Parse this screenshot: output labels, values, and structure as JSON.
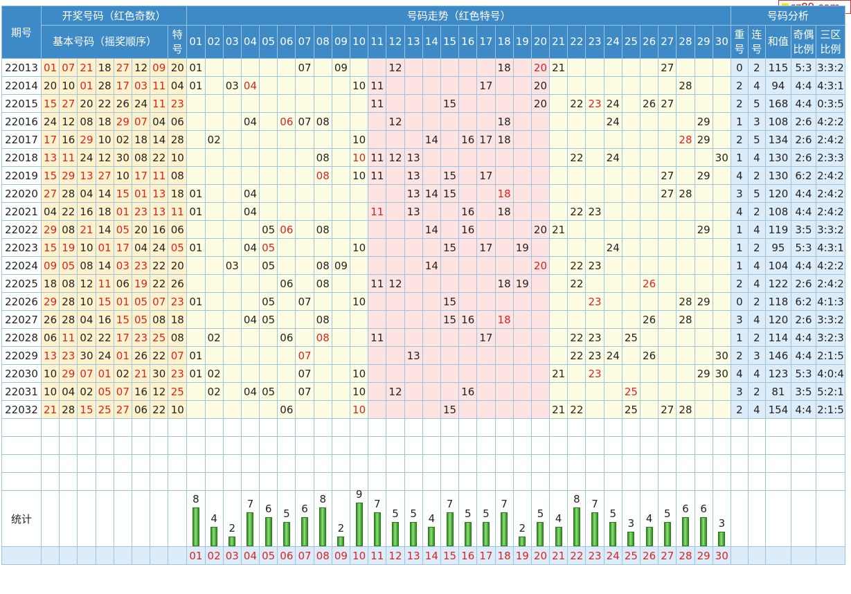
{
  "header": {
    "period": "期号",
    "draw_numbers": "开奖号码（红色奇数）",
    "basic_numbers": "基本号码（摇奖顺序）",
    "special": "特号",
    "trend": "号码走势（红色特号）",
    "analysis": "号码分析",
    "repeat": "重号",
    "consecutive": "连号",
    "sum": "和值",
    "odd_even": "奇偶比例",
    "zone": "三区比例"
  },
  "brand": "cz89.com",
  "stats_label": "统计",
  "colors": {
    "header_bg": "#3d8ac6",
    "odd_red": "#dd2222",
    "bar_green": "#2c8a1c",
    "number_bg": "#fdf2cc",
    "zone2_bg": "#fde3e1",
    "zone_bg": "#fdfde4",
    "analysis_bg": "#ddecf9"
  },
  "trend_labels": [
    "01",
    "02",
    "03",
    "04",
    "05",
    "06",
    "07",
    "08",
    "09",
    "10",
    "11",
    "12",
    "13",
    "14",
    "15",
    "16",
    "17",
    "18",
    "19",
    "20",
    "21",
    "22",
    "23",
    "24",
    "25",
    "26",
    "27",
    "28",
    "29",
    "30"
  ],
  "rows": [
    {
      "period": "22013",
      "basic": [
        "01",
        "07",
        "21",
        "18",
        "27",
        "12",
        "09"
      ],
      "special": "20",
      "trend": [
        "01",
        "07",
        "09",
        "12",
        "18",
        "20",
        "21",
        "27"
      ],
      "repeat": "0",
      "consecutive": "2",
      "sum": "115",
      "odd_even": "5:3",
      "zone": "3:3:2"
    },
    {
      "period": "22014",
      "basic": [
        "20",
        "10",
        "01",
        "28",
        "17",
        "03",
        "11"
      ],
      "special": "04",
      "trend": [
        "01",
        "03",
        "04",
        "10",
        "11",
        "17",
        "20",
        "28"
      ],
      "repeat": "2",
      "consecutive": "4",
      "sum": "94",
      "odd_even": "4:4",
      "zone": "4:3:1"
    },
    {
      "period": "22015",
      "basic": [
        "15",
        "27",
        "20",
        "22",
        "26",
        "24",
        "11"
      ],
      "special": "23",
      "trend": [
        "11",
        "15",
        "20",
        "22",
        "23",
        "24",
        "26",
        "27"
      ],
      "repeat": "2",
      "consecutive": "5",
      "sum": "168",
      "odd_even": "4:4",
      "zone": "0:3:5"
    },
    {
      "period": "22016",
      "basic": [
        "24",
        "12",
        "08",
        "18",
        "29",
        "07",
        "04"
      ],
      "special": "06",
      "trend": [
        "04",
        "06",
        "07",
        "08",
        "12",
        "18",
        "24",
        "29"
      ],
      "repeat": "1",
      "consecutive": "3",
      "sum": "108",
      "odd_even": "2:6",
      "zone": "4:2:2"
    },
    {
      "period": "22017",
      "basic": [
        "17",
        "16",
        "29",
        "10",
        "02",
        "18",
        "14"
      ],
      "special": "28",
      "trend": [
        "02",
        "10",
        "14",
        "16",
        "17",
        "18",
        "28",
        "29"
      ],
      "repeat": "2",
      "consecutive": "5",
      "sum": "134",
      "odd_even": "2:6",
      "zone": "2:4:2"
    },
    {
      "period": "22018",
      "basic": [
        "13",
        "11",
        "24",
        "12",
        "30",
        "08",
        "22"
      ],
      "special": "10",
      "trend": [
        "08",
        "10",
        "11",
        "12",
        "13",
        "22",
        "24",
        "30"
      ],
      "repeat": "1",
      "consecutive": "4",
      "sum": "130",
      "odd_even": "2:6",
      "zone": "2:3:3"
    },
    {
      "period": "22019",
      "basic": [
        "15",
        "29",
        "13",
        "27",
        "10",
        "17",
        "11"
      ],
      "special": "08",
      "trend": [
        "08",
        "10",
        "11",
        "13",
        "15",
        "17",
        "27",
        "29"
      ],
      "repeat": "4",
      "consecutive": "2",
      "sum": "130",
      "odd_even": "6:2",
      "zone": "2:4:2"
    },
    {
      "period": "22020",
      "basic": [
        "27",
        "28",
        "04",
        "14",
        "15",
        "01",
        "13"
      ],
      "special": "18",
      "trend": [
        "01",
        "04",
        "13",
        "14",
        "15",
        "18",
        "27",
        "28"
      ],
      "repeat": "3",
      "consecutive": "5",
      "sum": "120",
      "odd_even": "4:4",
      "zone": "2:4:2"
    },
    {
      "period": "22021",
      "basic": [
        "04",
        "22",
        "16",
        "18",
        "01",
        "23",
        "13"
      ],
      "special": "11",
      "trend": [
        "01",
        "04",
        "11",
        "13",
        "16",
        "18",
        "22",
        "23"
      ],
      "repeat": "4",
      "consecutive": "2",
      "sum": "108",
      "odd_even": "4:4",
      "zone": "2:4:2"
    },
    {
      "period": "22022",
      "basic": [
        "29",
        "08",
        "21",
        "14",
        "05",
        "20",
        "16"
      ],
      "special": "06",
      "trend": [
        "05",
        "06",
        "08",
        "14",
        "16",
        "20",
        "21",
        "29"
      ],
      "repeat": "1",
      "consecutive": "4",
      "sum": "119",
      "odd_even": "3:5",
      "zone": "3:3:2"
    },
    {
      "period": "22023",
      "basic": [
        "15",
        "19",
        "10",
        "01",
        "17",
        "04",
        "24"
      ],
      "special": "05",
      "trend": [
        "01",
        "04",
        "05",
        "10",
        "15",
        "17",
        "19",
        "24"
      ],
      "repeat": "1",
      "consecutive": "2",
      "sum": "95",
      "odd_even": "5:3",
      "zone": "4:3:1"
    },
    {
      "period": "22024",
      "basic": [
        "09",
        "05",
        "08",
        "14",
        "03",
        "23",
        "22"
      ],
      "special": "20",
      "trend": [
        "03",
        "05",
        "08",
        "09",
        "14",
        "20",
        "22",
        "23"
      ],
      "repeat": "1",
      "consecutive": "4",
      "sum": "104",
      "odd_even": "4:4",
      "zone": "4:2:2"
    },
    {
      "period": "22025",
      "basic": [
        "18",
        "08",
        "12",
        "11",
        "06",
        "19",
        "22"
      ],
      "special": "26",
      "trend": [
        "06",
        "08",
        "11",
        "12",
        "18",
        "19",
        "22",
        "26"
      ],
      "repeat": "2",
      "consecutive": "4",
      "sum": "122",
      "odd_even": "2:6",
      "zone": "2:4:2"
    },
    {
      "period": "22026",
      "basic": [
        "29",
        "28",
        "10",
        "15",
        "01",
        "05",
        "07"
      ],
      "special": "23",
      "trend": [
        "01",
        "05",
        "07",
        "10",
        "15",
        "23",
        "28",
        "29"
      ],
      "repeat": "0",
      "consecutive": "2",
      "sum": "118",
      "odd_even": "6:2",
      "zone": "4:1:3"
    },
    {
      "period": "22027",
      "basic": [
        "26",
        "28",
        "04",
        "16",
        "15",
        "05",
        "08"
      ],
      "special": "18",
      "trend": [
        "04",
        "05",
        "08",
        "15",
        "16",
        "18",
        "26",
        "28"
      ],
      "repeat": "3",
      "consecutive": "4",
      "sum": "120",
      "odd_even": "2:6",
      "zone": "3:3:2"
    },
    {
      "period": "22028",
      "basic": [
        "06",
        "11",
        "02",
        "22",
        "17",
        "23",
        "25"
      ],
      "special": "08",
      "trend": [
        "02",
        "06",
        "08",
        "11",
        "17",
        "22",
        "23",
        "25"
      ],
      "repeat": "1",
      "consecutive": "2",
      "sum": "114",
      "odd_even": "4:4",
      "zone": "3:2:3"
    },
    {
      "period": "22029",
      "basic": [
        "13",
        "23",
        "30",
        "24",
        "01",
        "26",
        "22"
      ],
      "special": "07",
      "trend": [
        "01",
        "07",
        "13",
        "22",
        "23",
        "24",
        "26",
        "30"
      ],
      "repeat": "2",
      "consecutive": "3",
      "sum": "146",
      "odd_even": "4:4",
      "zone": "2:1:5"
    },
    {
      "period": "22030",
      "basic": [
        "10",
        "29",
        "07",
        "01",
        "02",
        "21",
        "30"
      ],
      "special": "23",
      "trend": [
        "01",
        "02",
        "07",
        "10",
        "21",
        "23",
        "29",
        "30"
      ],
      "repeat": "4",
      "consecutive": "4",
      "sum": "123",
      "odd_even": "5:3",
      "zone": "4:0:4"
    },
    {
      "period": "22031",
      "basic": [
        "10",
        "04",
        "02",
        "05",
        "07",
        "16",
        "12"
      ],
      "special": "25",
      "trend": [
        "02",
        "04",
        "05",
        "07",
        "10",
        "12",
        "16",
        "25"
      ],
      "repeat": "3",
      "consecutive": "2",
      "sum": "81",
      "odd_even": "3:5",
      "zone": "5:2:1"
    },
    {
      "period": "22032",
      "basic": [
        "21",
        "28",
        "15",
        "25",
        "27",
        "06",
        "22"
      ],
      "special": "10",
      "trend": [
        "06",
        "10",
        "15",
        "21",
        "22",
        "25",
        "27",
        "28"
      ],
      "repeat": "2",
      "consecutive": "4",
      "sum": "154",
      "odd_even": "4:4",
      "zone": "2:1:5"
    }
  ],
  "chart_data": {
    "type": "bar",
    "title": "统计",
    "categories": [
      "01",
      "02",
      "03",
      "04",
      "05",
      "06",
      "07",
      "08",
      "09",
      "10",
      "11",
      "12",
      "13",
      "14",
      "15",
      "16",
      "17",
      "18",
      "19",
      "20",
      "21",
      "22",
      "23",
      "24",
      "25",
      "26",
      "27",
      "28",
      "29",
      "30"
    ],
    "values": [
      8,
      4,
      2,
      7,
      6,
      5,
      6,
      8,
      2,
      9,
      7,
      5,
      5,
      4,
      7,
      5,
      5,
      7,
      2,
      5,
      4,
      8,
      7,
      5,
      3,
      4,
      5,
      6,
      6,
      3
    ]
  }
}
